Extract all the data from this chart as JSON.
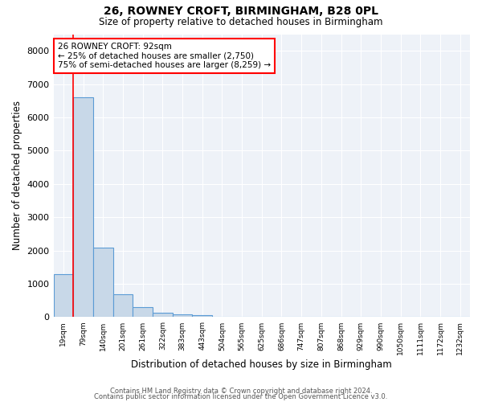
{
  "title_line1": "26, ROWNEY CROFT, BIRMINGHAM, B28 0PL",
  "title_line2": "Size of property relative to detached houses in Birmingham",
  "xlabel": "Distribution of detached houses by size in Birmingham",
  "ylabel": "Number of detached properties",
  "bar_labels": [
    "19sqm",
    "79sqm",
    "140sqm",
    "201sqm",
    "261sqm",
    "322sqm",
    "383sqm",
    "443sqm",
    "504sqm",
    "565sqm",
    "625sqm",
    "686sqm",
    "747sqm",
    "807sqm",
    "868sqm",
    "929sqm",
    "990sqm",
    "1050sqm",
    "1111sqm",
    "1172sqm",
    "1232sqm"
  ],
  "bar_values": [
    1300,
    6600,
    2080,
    680,
    290,
    130,
    80,
    60,
    0,
    0,
    0,
    0,
    0,
    0,
    0,
    0,
    0,
    0,
    0,
    0,
    0
  ],
  "bar_color": "#c8d8e8",
  "bar_edge_color": "#5b9bd5",
  "vline_x_index": 1,
  "annotation_text": "26 ROWNEY CROFT: 92sqm\n← 25% of detached houses are smaller (2,750)\n75% of semi-detached houses are larger (8,259) →",
  "annotation_box_color": "white",
  "annotation_box_edge_color": "red",
  "vline_color": "red",
  "ylim": [
    0,
    8500
  ],
  "yticks": [
    0,
    1000,
    2000,
    3000,
    4000,
    5000,
    6000,
    7000,
    8000
  ],
  "background_color": "#eef2f8",
  "grid_color": "white",
  "footer_line1": "Contains HM Land Registry data © Crown copyright and database right 2024.",
  "footer_line2": "Contains public sector information licensed under the Open Government Licence v3.0."
}
